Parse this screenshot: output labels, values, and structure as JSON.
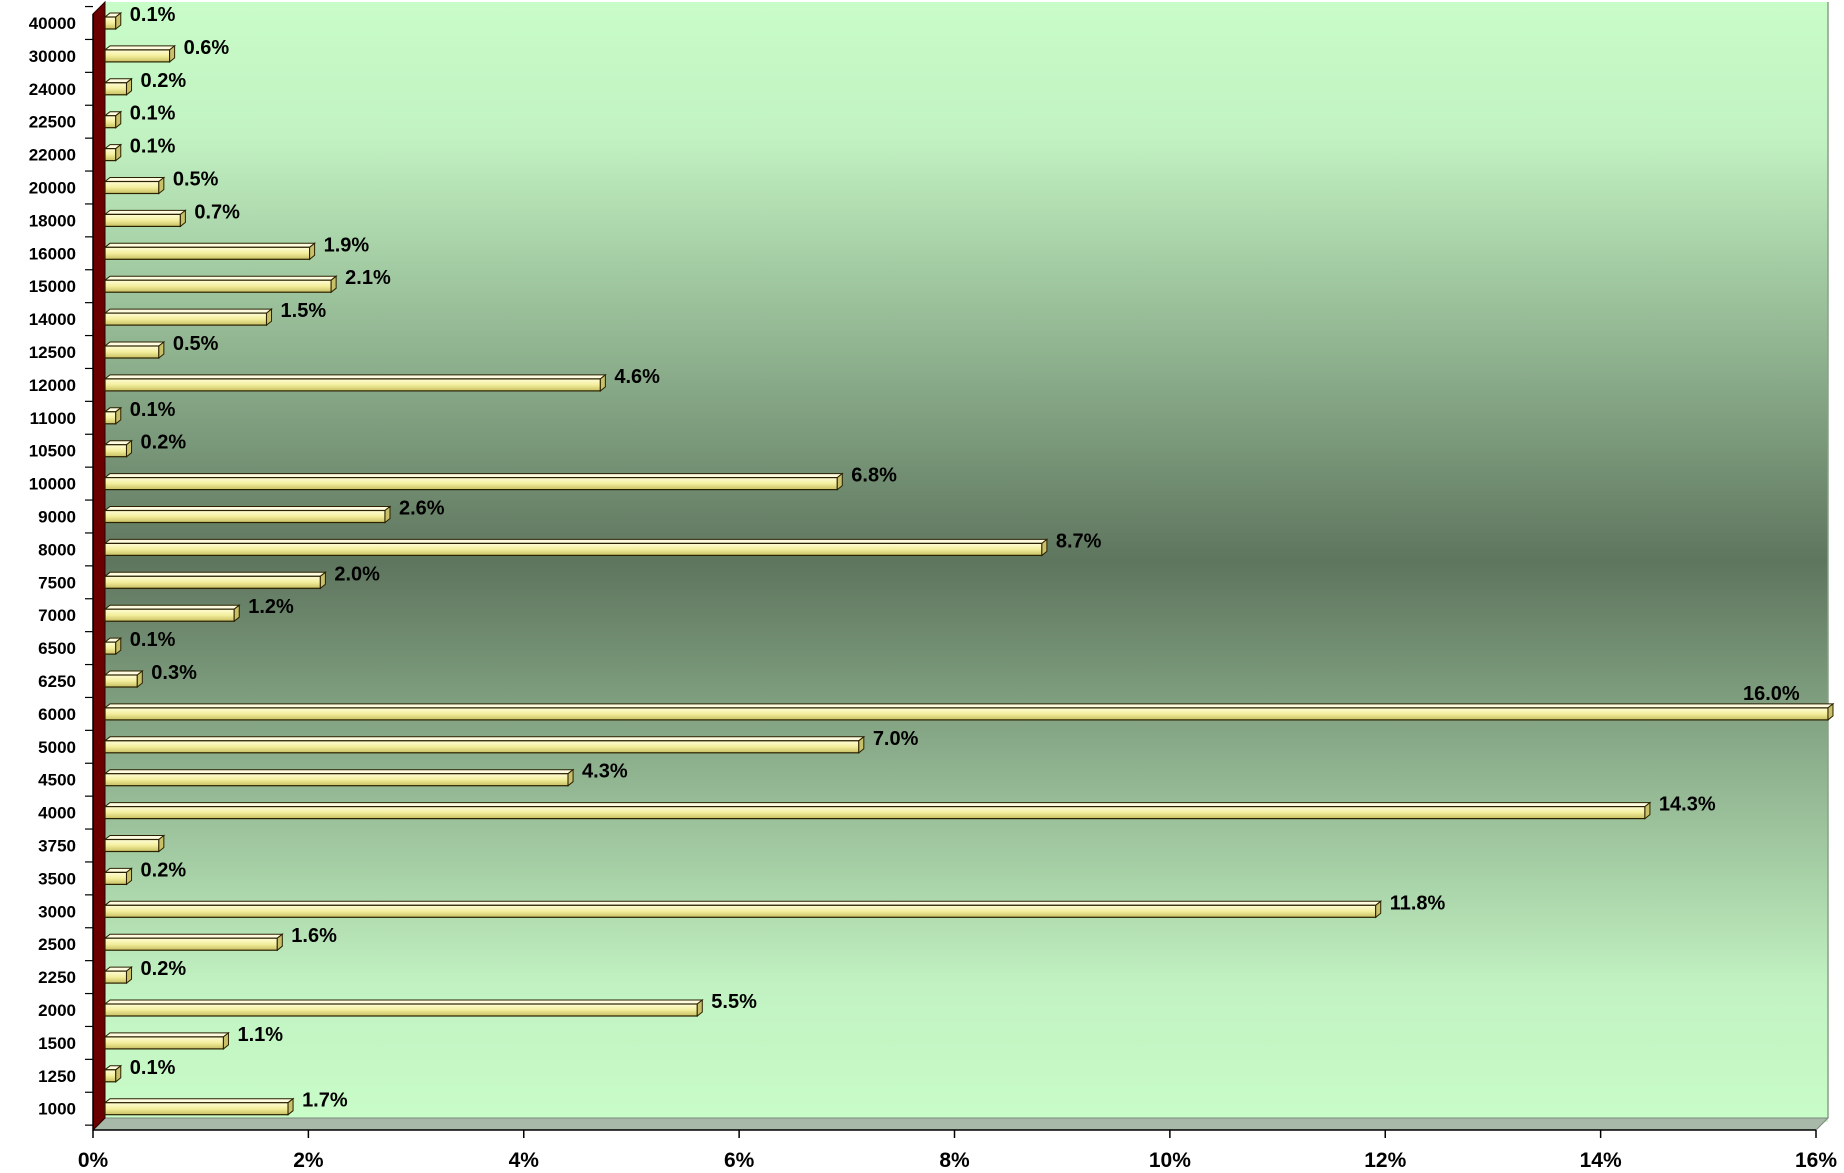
{
  "chart_data": {
    "type": "bar",
    "orientation": "horizontal",
    "categories": [
      "1000",
      "1250",
      "1500",
      "2000",
      "2250",
      "2500",
      "3000",
      "3500",
      "3750",
      "4000",
      "4500",
      "5000",
      "6000",
      "6250",
      "6500",
      "7000",
      "7500",
      "8000",
      "9000",
      "10000",
      "10500",
      "11000",
      "12000",
      "12500",
      "14000",
      "15000",
      "16000",
      "18000",
      "20000",
      "22000",
      "22500",
      "24000",
      "30000",
      "40000"
    ],
    "values": [
      1.7,
      0.1,
      1.1,
      5.5,
      0.2,
      1.6,
      11.8,
      0.2,
      0.5,
      14.3,
      4.3,
      7.0,
      16.0,
      0.3,
      0.1,
      1.2,
      2.0,
      8.7,
      2.6,
      6.8,
      0.2,
      0.1,
      4.6,
      0.5,
      1.5,
      2.1,
      1.9,
      0.7,
      0.5,
      0.1,
      0.1,
      0.2,
      0.6,
      0.1
    ],
    "data_labels": [
      "1.7%",
      "0.1%",
      "1.1%",
      "5.5%",
      "0.2%",
      "1.6%",
      "11.8%",
      "0.2%",
      "",
      "14.3%",
      "4.3%",
      "7.0%",
      "16.0%",
      "0.3%",
      "0.1%",
      "1.2%",
      "2.0%",
      "8.7%",
      "2.6%",
      "6.8%",
      "0.2%",
      "0.1%",
      "4.6%",
      "0.5%",
      "1.5%",
      "2.1%",
      "1.9%",
      "0.7%",
      "0.5%",
      "0.1%",
      "0.1%",
      "0.2%",
      "0.6%",
      "0.1%"
    ],
    "x_ticks": [
      "0%",
      "2%",
      "4%",
      "6%",
      "8%",
      "10%",
      "12%",
      "14%",
      "16%"
    ],
    "xlim": [
      0,
      16
    ],
    "title": "",
    "xlabel": "",
    "ylabel": "",
    "grid": false,
    "legend": "none",
    "colors": {
      "bar_fill": "#f6f2a8",
      "bar_edge": "#2a2100",
      "bar_cap": "#c9c06a",
      "bg_edge": "#c8fcc8",
      "bg_center": "#5e755e",
      "axis_wall": "#6b0000"
    }
  }
}
